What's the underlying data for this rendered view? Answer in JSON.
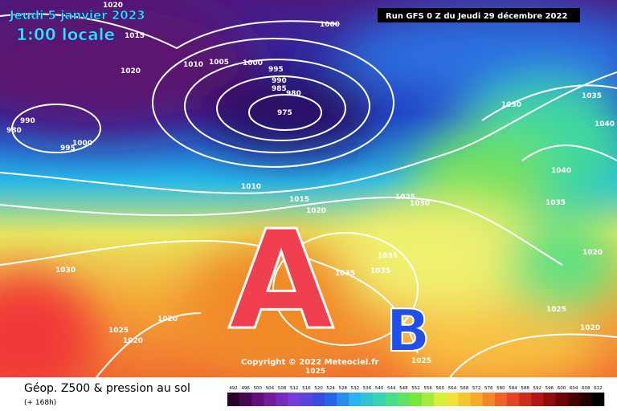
{
  "header": {
    "date": "Jeudi 5 janvier 2023",
    "time": "1:00 locale",
    "run": "Run GFS 0 Z du Jeudi 29 décembre 2022"
  },
  "map": {
    "high": "A",
    "low": "B",
    "copyright": "Copyright © 2022 Meteociel.fr",
    "isobar_labels": [
      1020,
      1015,
      1020,
      1010,
      1005,
      1000,
      995,
      990,
      985,
      980,
      975,
      1000,
      990,
      980,
      1000,
      995,
      1010,
      1015,
      1020,
      1025,
      1030,
      1030,
      1035,
      1040,
      1040,
      1035,
      1020,
      1030,
      1035,
      1035,
      1035,
      1025,
      1020,
      1025,
      1020,
      1020,
      1025,
      1025
    ]
  },
  "footer": {
    "title": "Géop. Z500 & pression au sol",
    "lead": "(+ 168h)",
    "scale": [
      492,
      496,
      500,
      504,
      508,
      512,
      516,
      520,
      524,
      528,
      532,
      536,
      540,
      544,
      548,
      552,
      556,
      560,
      564,
      568,
      572,
      576,
      580,
      584,
      588,
      592,
      596,
      600,
      604,
      608,
      612
    ]
  }
}
